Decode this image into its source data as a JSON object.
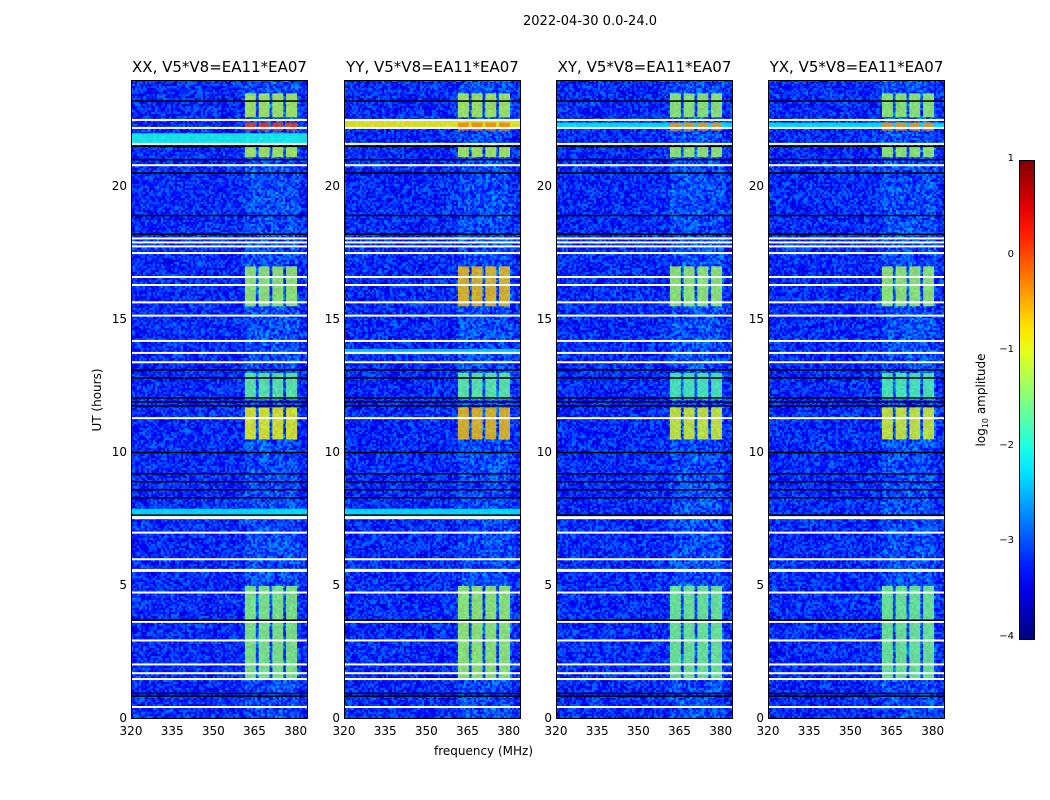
{
  "suptitle": "2022-04-30 0.0-24.0",
  "chart_data": {
    "type": "heatmap",
    "xlabel": "frequency (MHz)",
    "ylabel": "UT (hours)",
    "xlim": [
      320,
      384.5
    ],
    "ylim": [
      0,
      24
    ],
    "xticks": [
      "320",
      "335",
      "350",
      "365",
      "380"
    ],
    "xtick_values": [
      320,
      335,
      350,
      365,
      380
    ],
    "yticks": [
      "0",
      "5",
      "10",
      "15",
      "20"
    ],
    "ytick_values": [
      0,
      5,
      10,
      15,
      20
    ],
    "colorbar": {
      "label": "log₁₀ amplitude",
      "label_main": "log",
      "label_sub": "10",
      "label_rest": " amplitude",
      "range": [
        -4,
        1
      ],
      "ticks": [
        "1",
        "0",
        "−1",
        "−2",
        "−3",
        "−4"
      ],
      "tick_values": [
        1,
        0,
        -1,
        -2,
        -3,
        -4
      ],
      "colormap": "jet"
    },
    "background_level": -3.2,
    "subbands_mhz": [
      [
        361.5,
        365.5
      ],
      [
        366.5,
        370.5
      ],
      [
        371.5,
        375.5
      ],
      [
        376.5,
        380.5
      ]
    ],
    "flagged_white_hours": [
      0.45,
      1.5,
      1.72,
      2.05,
      2.95,
      3.65,
      4.75,
      5.6,
      6.0,
      7.0,
      7.58,
      11.3,
      13.4,
      13.75,
      14.2,
      15.15,
      15.65,
      16.3,
      16.6,
      17.5,
      17.75,
      17.9,
      18.05,
      20.8,
      21.6,
      22.2,
      22.5
    ],
    "flagged_black_hours": [
      0.85,
      0.95,
      3.7,
      7.65,
      8.3,
      8.6,
      8.9,
      9.2,
      10.0,
      11.75,
      11.9,
      12.05,
      12.8,
      13.1,
      18.2,
      18.9,
      20.5,
      21.0,
      21.5,
      23.2
    ],
    "panels": [
      {
        "title": "XX, V5*V8=EA11*EA07",
        "activity": [
          [
            1.5,
            5.0,
            -1.4
          ],
          [
            10.5,
            11.7,
            -0.9
          ],
          [
            12.0,
            13.0,
            -1.6
          ],
          [
            15.5,
            17.0,
            -1.3
          ],
          [
            21.1,
            21.5,
            -1.2
          ],
          [
            22.1,
            22.4,
            0.1
          ],
          [
            22.6,
            23.5,
            -1.2
          ]
        ],
        "wideband": [
          [
            7.6,
            7.9,
            -2.2
          ],
          [
            21.6,
            22.0,
            -2.0
          ]
        ]
      },
      {
        "title": "YY, V5*V8=EA11*EA07",
        "activity": [
          [
            1.5,
            5.0,
            -1.3
          ],
          [
            10.5,
            11.7,
            -0.6
          ],
          [
            12.0,
            13.0,
            -1.6
          ],
          [
            15.5,
            17.0,
            -0.6
          ],
          [
            21.1,
            21.5,
            -1.2
          ],
          [
            22.1,
            22.4,
            -0.2
          ],
          [
            22.6,
            23.5,
            -1.2
          ]
        ],
        "wideband": [
          [
            7.6,
            7.9,
            -2.2
          ],
          [
            22.2,
            22.5,
            -0.9
          ],
          [
            13.7,
            13.9,
            -2.3
          ]
        ]
      },
      {
        "title": "XY, V5*V8=EA11*EA07",
        "activity": [
          [
            1.5,
            5.0,
            -1.5
          ],
          [
            10.5,
            11.7,
            -1.0
          ],
          [
            12.0,
            13.0,
            -1.7
          ],
          [
            15.5,
            17.0,
            -1.3
          ],
          [
            21.1,
            21.5,
            -1.3
          ],
          [
            22.1,
            22.4,
            -0.3
          ],
          [
            22.6,
            23.5,
            -1.3
          ]
        ],
        "wideband": [
          [
            22.2,
            22.4,
            -2.2
          ]
        ]
      },
      {
        "title": "YX, V5*V8=EA11*EA07",
        "activity": [
          [
            1.5,
            5.0,
            -1.5
          ],
          [
            10.5,
            11.7,
            -1.0
          ],
          [
            12.0,
            13.0,
            -1.7
          ],
          [
            15.5,
            17.0,
            -1.3
          ],
          [
            21.1,
            21.5,
            -1.3
          ],
          [
            22.1,
            22.4,
            -0.3
          ],
          [
            22.6,
            23.5,
            -1.3
          ]
        ],
        "wideband": [
          [
            22.2,
            22.4,
            -2.2
          ]
        ]
      }
    ]
  }
}
